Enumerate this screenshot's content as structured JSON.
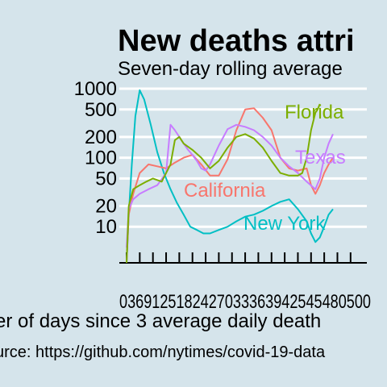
{
  "chart_data": {
    "type": "line",
    "title": "New deaths attri",
    "subtitle": "Seven-day rolling average",
    "xlabel": "er of days since 3 average daily death",
    "caption": "urce: https://github.com/nytimes/covid-19-data",
    "y_scale": "log",
    "ylim": [
      3,
      1000
    ],
    "xlim": [
      0,
      525
    ],
    "grid": true,
    "y_ticks": [
      10,
      20,
      50,
      100,
      200,
      500,
      1000
    ],
    "y_tick_labels": [
      "10",
      "20",
      "50",
      "100",
      "200",
      "500",
      "1000"
    ],
    "x_ticks": [
      0,
      30,
      60,
      90,
      120,
      150,
      180,
      210,
      240,
      270,
      300,
      330,
      360,
      390,
      420,
      450,
      480,
      510
    ],
    "x_tick_text": "0369125182427033363942545480500",
    "series": [
      {
        "name": "New York",
        "color": "#00bfc4",
        "x": [
          0,
          5,
          12,
          20,
          30,
          40,
          55,
          70,
          85,
          100,
          115,
          130,
          145,
          160,
          175,
          190,
          210,
          230,
          250,
          270,
          290,
          310,
          330,
          350,
          370,
          390,
          410,
          420,
          430,
          440,
          450,
          460,
          470
        ],
        "y": [
          3,
          15,
          80,
          400,
          950,
          700,
          300,
          120,
          60,
          35,
          22,
          15,
          10,
          9,
          8,
          8,
          9,
          10,
          12,
          14,
          15,
          17,
          20,
          23,
          25,
          18,
          12,
          8,
          6,
          7,
          10,
          15,
          18
        ]
      },
      {
        "name": "California",
        "color": "#f8766d",
        "x": [
          0,
          5,
          15,
          30,
          50,
          70,
          90,
          110,
          130,
          150,
          170,
          190,
          210,
          230,
          250,
          270,
          290,
          310,
          330,
          350,
          370,
          390,
          410,
          420,
          430,
          440,
          450,
          460,
          470
        ],
        "y": [
          3,
          15,
          30,
          60,
          80,
          75,
          70,
          85,
          100,
          110,
          80,
          55,
          55,
          95,
          250,
          500,
          520,
          380,
          250,
          100,
          70,
          65,
          70,
          40,
          30,
          40,
          60,
          80,
          100
        ]
      },
      {
        "name": "Texas",
        "color": "#c77cff",
        "x": [
          0,
          5,
          15,
          30,
          50,
          70,
          90,
          100,
          110,
          120,
          130,
          140,
          150,
          160,
          170,
          180,
          190,
          200,
          210,
          230,
          250,
          270,
          290,
          310,
          330,
          350,
          370,
          390,
          410,
          430,
          440,
          450,
          460,
          470
        ],
        "y": [
          5,
          18,
          25,
          30,
          35,
          40,
          60,
          300,
          250,
          200,
          160,
          130,
          110,
          90,
          70,
          65,
          80,
          110,
          150,
          260,
          300,
          280,
          250,
          200,
          150,
          100,
          75,
          60,
          45,
          35,
          50,
          100,
          160,
          220
        ]
      },
      {
        "name": "Florida",
        "color": "#7cae00",
        "x": [
          0,
          5,
          15,
          30,
          45,
          60,
          80,
          100,
          110,
          120,
          130,
          150,
          170,
          190,
          210,
          230,
          250,
          270,
          290,
          310,
          330,
          350,
          370,
          390,
          400,
          410,
          420,
          430,
          435,
          440
        ],
        "y": [
          3,
          20,
          35,
          40,
          45,
          50,
          45,
          80,
          180,
          200,
          160,
          130,
          100,
          70,
          90,
          140,
          200,
          220,
          190,
          140,
          90,
          60,
          55,
          55,
          60,
          100,
          250,
          450,
          500,
          600
        ]
      }
    ]
  }
}
